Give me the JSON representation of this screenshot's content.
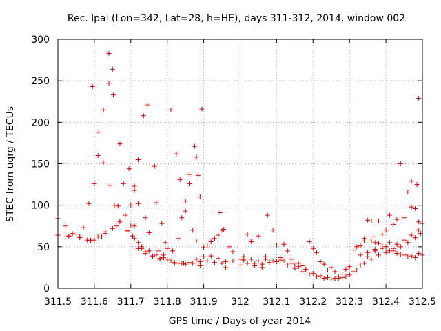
{
  "chart_data": {
    "type": "scatter",
    "title": "Rec. lpal (Lon=342, Lat=28, h=HE), days 311-312, 2014, window 002",
    "xlabel": "GPS time / Days of year 2014",
    "ylabel": "STEC from uqrg / TECUs",
    "xlim": [
      311.5,
      312.5
    ],
    "ylim": [
      0,
      300
    ],
    "xticks": [
      311.5,
      311.6,
      311.7,
      311.8,
      311.9,
      312,
      312.1,
      312.2,
      312.3,
      312.4,
      312.5
    ],
    "xtick_labels": [
      "311.5",
      "311.6",
      "311.7",
      "311.8",
      "311.9",
      "312",
      "312.1",
      "312.2",
      "312.3",
      "312.4",
      "312.5"
    ],
    "yticks": [
      0,
      50,
      100,
      150,
      200,
      250,
      300
    ],
    "ytick_labels": [
      "0",
      "50",
      "100",
      "150",
      "200",
      "250",
      "300"
    ],
    "grid": true,
    "marker": "+",
    "color": "#e00000",
    "series": [
      {
        "points": [
          [
            311.5,
            84
          ],
          [
            311.5,
            64
          ],
          [
            311.52,
            75
          ],
          [
            311.52,
            62
          ],
          [
            311.53,
            63
          ],
          [
            311.54,
            66
          ],
          [
            311.55,
            65
          ],
          [
            311.56,
            62
          ],
          [
            311.57,
            73
          ],
          [
            311.58,
            58
          ],
          [
            311.59,
            57
          ],
          [
            311.6,
            58
          ],
          [
            311.585,
            102
          ],
          [
            311.595,
            243
          ],
          [
            311.6,
            126
          ],
          [
            311.61,
            160
          ],
          [
            311.612,
            188
          ],
          [
            311.62,
            62
          ],
          [
            311.625,
            215
          ],
          [
            311.625,
            151
          ],
          [
            311.63,
            68
          ],
          [
            311.64,
            283
          ],
          [
            311.64,
            247
          ],
          [
            311.643,
            124
          ],
          [
            311.65,
            264
          ],
          [
            311.652,
            233
          ],
          [
            311.655,
            100
          ],
          [
            311.66,
            75
          ],
          [
            311.665,
            99
          ],
          [
            311.67,
            174
          ],
          [
            311.67,
            81
          ],
          [
            311.68,
            126
          ],
          [
            311.685,
            88
          ],
          [
            311.69,
            69
          ],
          [
            311.695,
            144
          ],
          [
            311.7,
            100
          ],
          [
            311.7,
            76
          ],
          [
            311.705,
            63
          ],
          [
            311.71,
            123
          ],
          [
            311.71,
            118
          ],
          [
            311.71,
            75
          ],
          [
            311.72,
            155
          ],
          [
            311.72,
            102
          ],
          [
            311.72,
            55
          ],
          [
            311.73,
            48
          ],
          [
            311.735,
            208
          ],
          [
            311.74,
            85
          ],
          [
            311.745,
            221
          ],
          [
            311.74,
            44
          ],
          [
            311.75,
            67
          ],
          [
            311.76,
            38
          ],
          [
            311.765,
            147
          ],
          [
            311.77,
            103
          ],
          [
            311.775,
            45
          ],
          [
            311.78,
            35
          ],
          [
            311.785,
            78
          ],
          [
            311.79,
            40
          ],
          [
            311.795,
            55
          ],
          [
            311.8,
            48
          ],
          [
            311.8,
            35
          ],
          [
            311.81,
            215
          ],
          [
            311.815,
            45
          ],
          [
            311.82,
            30
          ],
          [
            311.825,
            162
          ],
          [
            311.83,
            60
          ],
          [
            311.835,
            131
          ],
          [
            311.84,
            85
          ],
          [
            311.845,
            30
          ],
          [
            311.85,
            105
          ],
          [
            311.85,
            93
          ],
          [
            311.86,
            137
          ],
          [
            311.862,
            126
          ],
          [
            311.87,
            70
          ],
          [
            311.875,
            171
          ],
          [
            311.88,
            158
          ],
          [
            311.88,
            57
          ],
          [
            311.885,
            136
          ],
          [
            311.89,
            110
          ],
          [
            311.89,
            27
          ],
          [
            311.895,
            216
          ],
          [
            311.9,
            49
          ],
          [
            311.91,
            52
          ],
          [
            311.92,
            56
          ],
          [
            311.93,
            60
          ],
          [
            311.94,
            64
          ],
          [
            311.945,
            91
          ],
          [
            311.95,
            70
          ],
          [
            311.955,
            71
          ],
          [
            311.96,
            25
          ],
          [
            311.97,
            50
          ],
          [
            311.98,
            44
          ],
          [
            311.53,
            63
          ],
          [
            311.56,
            61
          ],
          [
            311.59,
            58
          ],
          [
            311.61,
            62
          ],
          [
            311.63,
            66
          ],
          [
            311.65,
            72
          ],
          [
            311.67,
            80
          ],
          [
            311.69,
            70
          ],
          [
            311.71,
            60
          ],
          [
            311.73,
            50
          ],
          [
            311.75,
            45
          ],
          [
            311.77,
            40
          ],
          [
            311.79,
            37
          ],
          [
            311.81,
            33
          ],
          [
            311.83,
            30
          ],
          [
            311.85,
            29
          ],
          [
            311.87,
            30
          ],
          [
            311.89,
            32
          ],
          [
            311.91,
            33
          ],
          [
            311.93,
            31
          ],
          [
            311.95,
            30
          ],
          [
            311.72,
            48
          ],
          [
            311.74,
            42
          ],
          [
            311.76,
            39
          ],
          [
            311.78,
            36
          ],
          [
            311.8,
            33
          ],
          [
            311.82,
            31
          ],
          [
            311.84,
            30
          ],
          [
            311.86,
            31
          ],
          [
            311.88,
            35
          ],
          [
            311.9,
            38
          ],
          [
            311.92,
            39
          ],
          [
            311.94,
            36
          ],
          [
            311.96,
            32
          ],
          [
            311.98,
            33
          ],
          [
            312.0,
            35
          ],
          [
            312.01,
            34
          ],
          [
            312.02,
            65
          ],
          [
            312.03,
            56
          ],
          [
            312.04,
            30
          ],
          [
            312.05,
            63
          ],
          [
            312.06,
            25
          ],
          [
            312.07,
            38
          ],
          [
            312.075,
            88
          ],
          [
            312.08,
            33
          ],
          [
            312.09,
            70
          ],
          [
            312.1,
            52
          ],
          [
            312.11,
            37
          ],
          [
            312.12,
            53
          ],
          [
            312.13,
            45
          ],
          [
            312.14,
            35
          ],
          [
            312.15,
            28
          ],
          [
            312.16,
            30
          ],
          [
            312.17,
            27
          ],
          [
            312.18,
            23
          ],
          [
            312.19,
            56
          ],
          [
            312.2,
            48
          ],
          [
            312.21,
            43
          ],
          [
            312.22,
            32
          ],
          [
            312.23,
            29
          ],
          [
            312.24,
            22
          ],
          [
            312.25,
            25
          ],
          [
            312.26,
            20
          ],
          [
            312.27,
            14
          ],
          [
            312.28,
            17
          ],
          [
            312.29,
            23
          ],
          [
            312.3,
            26
          ],
          [
            312.31,
            46
          ],
          [
            312.32,
            50
          ],
          [
            312.33,
            51
          ],
          [
            312.34,
            57
          ],
          [
            312.35,
            82
          ],
          [
            312.36,
            81
          ],
          [
            312.365,
            62
          ],
          [
            312.37,
            55
          ],
          [
            312.38,
            81
          ],
          [
            312.39,
            65
          ],
          [
            312.4,
            70
          ],
          [
            312.41,
            88
          ],
          [
            312.42,
            77
          ],
          [
            312.43,
            83
          ],
          [
            312.44,
            150
          ],
          [
            312.45,
            85
          ],
          [
            312.46,
            116
          ],
          [
            312.47,
            129
          ],
          [
            312.47,
            98
          ],
          [
            312.48,
            96
          ],
          [
            312.485,
            125
          ],
          [
            312.49,
            229
          ],
          [
            312.49,
            80
          ],
          [
            312.495,
            66
          ],
          [
            312.0,
            28
          ],
          [
            312.02,
            30
          ],
          [
            312.04,
            27
          ],
          [
            312.06,
            29
          ],
          [
            312.08,
            31
          ],
          [
            312.1,
            32
          ],
          [
            312.12,
            33
          ],
          [
            312.14,
            30
          ],
          [
            312.16,
            26
          ],
          [
            312.18,
            22
          ],
          [
            312.2,
            18
          ],
          [
            312.22,
            15
          ],
          [
            312.24,
            13
          ],
          [
            312.26,
            12
          ],
          [
            312.28,
            13
          ],
          [
            312.3,
            16
          ],
          [
            312.32,
            22
          ],
          [
            312.34,
            30
          ],
          [
            312.36,
            35
          ],
          [
            312.38,
            40
          ],
          [
            312.4,
            43
          ],
          [
            312.42,
            45
          ],
          [
            312.44,
            41
          ],
          [
            312.46,
            38
          ],
          [
            312.48,
            37
          ],
          [
            312.5,
            40
          ],
          [
            312.01,
            38
          ],
          [
            312.03,
            35
          ],
          [
            312.05,
            33
          ],
          [
            312.07,
            35
          ],
          [
            312.09,
            33
          ],
          [
            312.11,
            34
          ],
          [
            312.13,
            28
          ],
          [
            312.15,
            24
          ],
          [
            312.17,
            20
          ],
          [
            312.19,
            17
          ],
          [
            312.21,
            14
          ],
          [
            312.23,
            12
          ],
          [
            312.25,
            11
          ],
          [
            312.27,
            12
          ],
          [
            312.29,
            14
          ],
          [
            312.31,
            20
          ],
          [
            312.33,
            28
          ],
          [
            312.35,
            38
          ],
          [
            312.37,
            47
          ],
          [
            312.39,
            52
          ],
          [
            312.41,
            55
          ],
          [
            312.43,
            53
          ],
          [
            312.45,
            58
          ],
          [
            312.47,
            64
          ],
          [
            312.49,
            70
          ],
          [
            312.33,
            40
          ],
          [
            312.35,
            43
          ],
          [
            312.37,
            45
          ],
          [
            312.39,
            48
          ],
          [
            312.41,
            45
          ],
          [
            312.43,
            42
          ],
          [
            312.45,
            40
          ],
          [
            312.47,
            39
          ],
          [
            312.49,
            42
          ],
          [
            312.34,
            60
          ],
          [
            312.36,
            57
          ],
          [
            312.38,
            54
          ],
          [
            312.4,
            50
          ],
          [
            312.42,
            48
          ],
          [
            312.44,
            50
          ],
          [
            312.46,
            55
          ],
          [
            312.48,
            61
          ],
          [
            312.5,
            78
          ]
        ]
      }
    ]
  }
}
